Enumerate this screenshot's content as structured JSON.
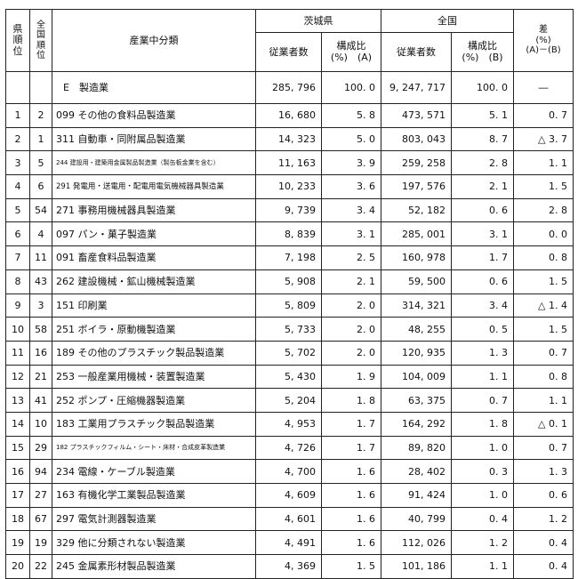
{
  "header": {
    "pref_rank": "県\n順\n位",
    "nat_rank": "全\n国\n順\n位",
    "category": "産業中分類",
    "ibaraki": "茨城県",
    "national": "全国",
    "diff": "差\n(%)\n(A)－(B)",
    "emp1": "従業者数",
    "ratio1": "構成比\n(%)　(A)",
    "emp2": "従業者数",
    "ratio2": "構成比\n(%)　(B)"
  },
  "total": {
    "label": "E　製造業",
    "ibaraki_emp": "285, 796",
    "ibaraki_ratio": "100. 0",
    "national_emp": "9, 247, 717",
    "national_ratio": "100. 0",
    "diff": "―"
  },
  "rows": [
    {
      "pref_rank": "1",
      "nat_rank": "2",
      "industry": "099 その他の食料品製造業",
      "emp_a": "16, 680",
      "ratio_a": "5. 8",
      "emp_b": "473, 571",
      "ratio_b": "5. 1",
      "diff": "0. 7",
      "small": false
    },
    {
      "pref_rank": "2",
      "nat_rank": "1",
      "industry": "311 自動車・同附属品製造業",
      "emp_a": "14, 323",
      "ratio_a": "5. 0",
      "emp_b": "803, 043",
      "ratio_b": "8. 7",
      "diff": "△ 3. 7",
      "small": false
    },
    {
      "pref_rank": "3",
      "nat_rank": "5",
      "industry": "244 建設用・建築用金属製品製造業（製缶板金業を含む）",
      "emp_a": "11, 163",
      "ratio_a": "3. 9",
      "emp_b": "259, 258",
      "ratio_b": "2. 8",
      "diff": "1. 1",
      "small": true
    },
    {
      "pref_rank": "4",
      "nat_rank": "6",
      "industry": "291 発電用・送電用・配電用電気機械器具製造業",
      "emp_a": "10, 233",
      "ratio_a": "3. 6",
      "emp_b": "197, 576",
      "ratio_b": "2. 1",
      "diff": "1. 5",
      "small": "mid"
    },
    {
      "pref_rank": "5",
      "nat_rank": "54",
      "industry": "271 事務用機械器具製造業",
      "emp_a": "9, 739",
      "ratio_a": "3. 4",
      "emp_b": "52, 182",
      "ratio_b": "0. 6",
      "diff": "2. 8",
      "small": false
    },
    {
      "pref_rank": "6",
      "nat_rank": "4",
      "industry": "097 パン・菓子製造業",
      "emp_a": "8, 839",
      "ratio_a": "3. 1",
      "emp_b": "285, 001",
      "ratio_b": "3. 1",
      "diff": "0. 0",
      "small": false
    },
    {
      "pref_rank": "7",
      "nat_rank": "11",
      "industry": "091 畜産食料品製造業",
      "emp_a": "7, 198",
      "ratio_a": "2. 5",
      "emp_b": "160, 978",
      "ratio_b": "1. 7",
      "diff": "0. 8",
      "small": false
    },
    {
      "pref_rank": "8",
      "nat_rank": "43",
      "industry": "262 建設機械・鉱山機械製造業",
      "emp_a": "5, 908",
      "ratio_a": "2. 1",
      "emp_b": "59, 500",
      "ratio_b": "0. 6",
      "diff": "1. 5",
      "small": false
    },
    {
      "pref_rank": "9",
      "nat_rank": "3",
      "industry": "151 印刷業",
      "emp_a": "5, 809",
      "ratio_a": "2. 0",
      "emp_b": "314, 321",
      "ratio_b": "3. 4",
      "diff": "△ 1. 4",
      "small": false
    },
    {
      "pref_rank": "10",
      "nat_rank": "58",
      "industry": "251 ボイラ・原動機製造業",
      "emp_a": "5, 733",
      "ratio_a": "2. 0",
      "emp_b": "48, 255",
      "ratio_b": "0. 5",
      "diff": "1. 5",
      "small": false
    },
    {
      "pref_rank": "11",
      "nat_rank": "16",
      "industry": "189 その他のプラスチック製品製造業",
      "emp_a": "5, 702",
      "ratio_a": "2. 0",
      "emp_b": "120, 935",
      "ratio_b": "1. 3",
      "diff": "0. 7",
      "small": false
    },
    {
      "pref_rank": "12",
      "nat_rank": "21",
      "industry": "253 一般産業用機械・装置製造業",
      "emp_a": "5, 430",
      "ratio_a": "1. 9",
      "emp_b": "104, 009",
      "ratio_b": "1. 1",
      "diff": "0. 8",
      "small": false
    },
    {
      "pref_rank": "13",
      "nat_rank": "41",
      "industry": "252 ポンプ・圧縮機器製造業",
      "emp_a": "5, 204",
      "ratio_a": "1. 8",
      "emp_b": "63, 375",
      "ratio_b": "0. 7",
      "diff": "1. 1",
      "small": false
    },
    {
      "pref_rank": "14",
      "nat_rank": "10",
      "industry": "183 工業用プラスチック製品製造業",
      "emp_a": "4, 953",
      "ratio_a": "1. 7",
      "emp_b": "164, 292",
      "ratio_b": "1. 8",
      "diff": "△ 0. 1",
      "small": false
    },
    {
      "pref_rank": "15",
      "nat_rank": "29",
      "industry": "182 プラスチックフィルム・シート・床材・合成皮革製造業",
      "emp_a": "4, 726",
      "ratio_a": "1. 7",
      "emp_b": "89, 820",
      "ratio_b": "1. 0",
      "diff": "0. 7",
      "small": true
    },
    {
      "pref_rank": "16",
      "nat_rank": "94",
      "industry": "234 電線・ケーブル製造業",
      "emp_a": "4, 700",
      "ratio_a": "1. 6",
      "emp_b": "28, 402",
      "ratio_b": "0. 3",
      "diff": "1. 3",
      "small": false
    },
    {
      "pref_rank": "17",
      "nat_rank": "27",
      "industry": "163 有機化学工業製品製造業",
      "emp_a": "4, 609",
      "ratio_a": "1. 6",
      "emp_b": "91, 424",
      "ratio_b": "1. 0",
      "diff": "0. 6",
      "small": false
    },
    {
      "pref_rank": "18",
      "nat_rank": "67",
      "industry": "297 電気計測器製造業",
      "emp_a": "4, 601",
      "ratio_a": "1. 6",
      "emp_b": "40, 799",
      "ratio_b": "0. 4",
      "diff": "1. 2",
      "small": false
    },
    {
      "pref_rank": "19",
      "nat_rank": "19",
      "industry": "329 他に分類されない製造業",
      "emp_a": "4, 491",
      "ratio_a": "1. 6",
      "emp_b": "112, 026",
      "ratio_b": "1. 2",
      "diff": "0. 4",
      "small": false
    },
    {
      "pref_rank": "20",
      "nat_rank": "22",
      "industry": "245 金属素形材製品製造業",
      "emp_a": "4, 369",
      "ratio_a": "1. 5",
      "emp_b": "101, 186",
      "ratio_b": "1. 1",
      "diff": "0. 4",
      "small": false
    }
  ]
}
